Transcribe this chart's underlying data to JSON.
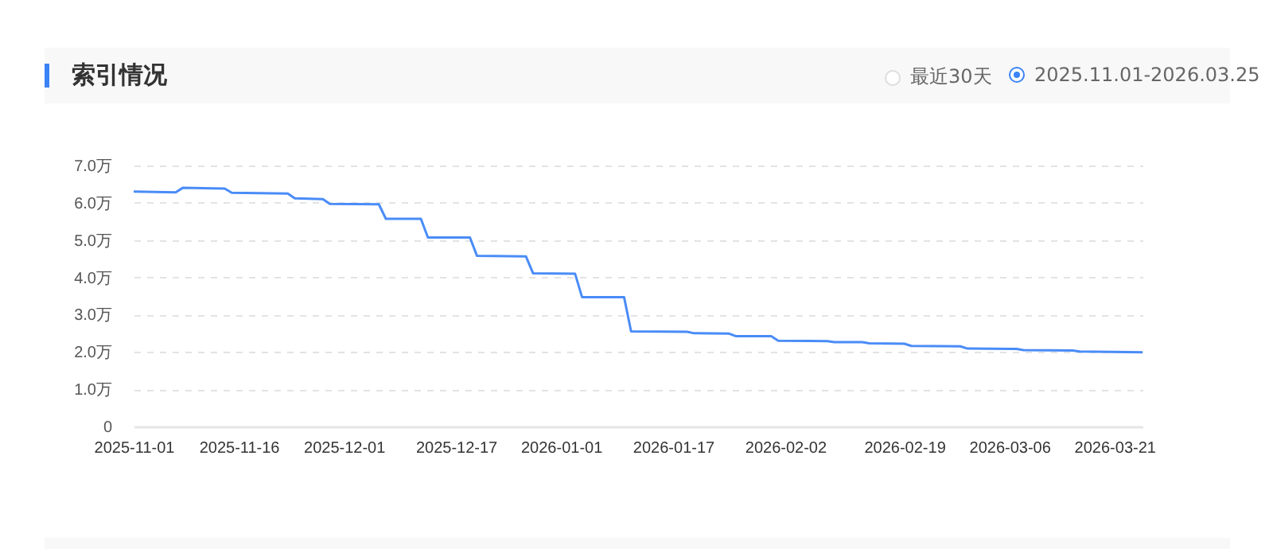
{
  "chart_data": {
    "type": "line",
    "title": "索引情况",
    "annotations": [
      "最近30天",
      "2025.11.01-2026.03.25"
    ],
    "x": [
      "2025-11-01",
      "2025-11-07",
      "2025-11-08",
      "2025-11-14",
      "2025-11-15",
      "2025-11-23",
      "2025-11-24",
      "2025-11-28",
      "2025-11-29",
      "2025-12-06",
      "2025-12-07",
      "2025-12-12",
      "2025-12-13",
      "2025-12-19",
      "2025-12-20",
      "2025-12-27",
      "2025-12-28",
      "2026-01-03",
      "2026-01-04",
      "2026-01-10",
      "2026-01-11",
      "2026-01-19",
      "2026-01-20",
      "2026-01-25",
      "2026-01-26",
      "2026-01-31",
      "2026-02-01",
      "2026-02-08",
      "2026-02-09",
      "2026-02-13",
      "2026-02-14",
      "2026-02-19",
      "2026-02-20",
      "2026-02-27",
      "2026-02-28",
      "2026-03-07",
      "2026-03-08",
      "2026-03-15",
      "2026-03-16",
      "2026-03-25"
    ],
    "series": [
      {
        "color": "#4a8cf7",
        "values": [
          6.3,
          6.28,
          6.4,
          6.38,
          6.27,
          6.25,
          6.12,
          6.1,
          5.97,
          5.96,
          5.57,
          5.57,
          5.07,
          5.07,
          4.58,
          4.56,
          4.11,
          4.1,
          3.47,
          3.47,
          2.55,
          2.54,
          2.5,
          2.49,
          2.42,
          2.42,
          2.3,
          2.29,
          2.26,
          2.26,
          2.23,
          2.22,
          2.16,
          2.15,
          2.09,
          2.08,
          2.05,
          2.04,
          2.01,
          1.99
        ]
      }
    ],
    "xlim": [
      "2025-11-01",
      "2026-03-25"
    ],
    "xticks": [
      "2025-11-01",
      "2025-11-16",
      "2025-12-01",
      "2025-12-17",
      "2026-01-01",
      "2026-01-17",
      "2026-02-02",
      "2026-02-19",
      "2026-03-06",
      "2026-03-21"
    ],
    "ylim": [
      0,
      7
    ],
    "yticks": [
      {
        "value": 0,
        "label": "0"
      },
      {
        "value": 1,
        "label": "1.0万"
      },
      {
        "value": 2,
        "label": "2.0万"
      },
      {
        "value": 3,
        "label": "3.0万"
      },
      {
        "value": 4,
        "label": "4.0万"
      },
      {
        "value": 5,
        "label": "5.0万"
      },
      {
        "value": 6,
        "label": "6.0万"
      },
      {
        "value": 7,
        "label": "7.0万"
      }
    ],
    "grid": "y",
    "marker": "none",
    "line_style": "solid",
    "legend": false
  }
}
